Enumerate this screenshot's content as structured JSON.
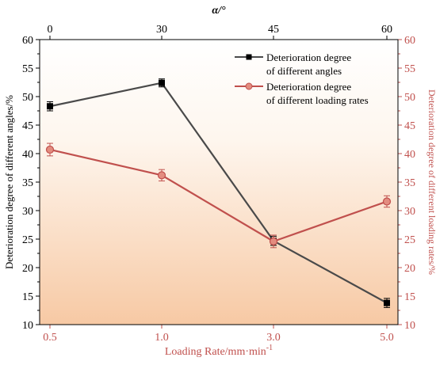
{
  "chart_data": {
    "type": "line",
    "xlabel_bottom": "Loading Rate/mm·min",
    "xlabel_bottom_sup": "-1",
    "xlabel_top": "α/°",
    "ylabel_left": "Deterioration degree of different angles/%",
    "ylabel_right": "Deterioration degree of different loading rates/%",
    "ylim": [
      10,
      60
    ],
    "yticks": [
      "10",
      "15",
      "20",
      "25",
      "30",
      "35",
      "40",
      "45",
      "50",
      "55",
      "60"
    ],
    "x_top_ticks": [
      "0",
      "30",
      "45",
      "60"
    ],
    "x_bottom_ticks": [
      "0.5",
      "1.0",
      "3.0",
      "5.0"
    ],
    "series": [
      {
        "name": "Deterioration degree of different angles",
        "color": "#4a4a4a",
        "marker": "square",
        "axis": "left",
        "values": [
          48.3,
          52.4,
          24.7,
          13.8
        ],
        "errors": [
          0.8,
          0.7,
          0.8,
          0.8
        ]
      },
      {
        "name": "Deterioration degree of different loading rates",
        "color": "#c0504d",
        "marker": "circle",
        "axis": "right",
        "values": [
          40.7,
          36.2,
          24.6,
          31.6
        ],
        "errors": [
          1.1,
          1.0,
          1.1,
          1.0
        ]
      }
    ],
    "legend": {
      "position": "top-right",
      "entries": [
        [
          "Deterioration degree",
          "of different angles"
        ],
        [
          "Deterioration degree",
          "of different loading rates"
        ]
      ]
    },
    "colors": {
      "left_axis": "#000000",
      "right_axis": "#c0504d",
      "bottom_axis": "#c0504d",
      "background_top": "#ffffff",
      "background_bottom": "#f7c9a4"
    },
    "grid": false
  }
}
